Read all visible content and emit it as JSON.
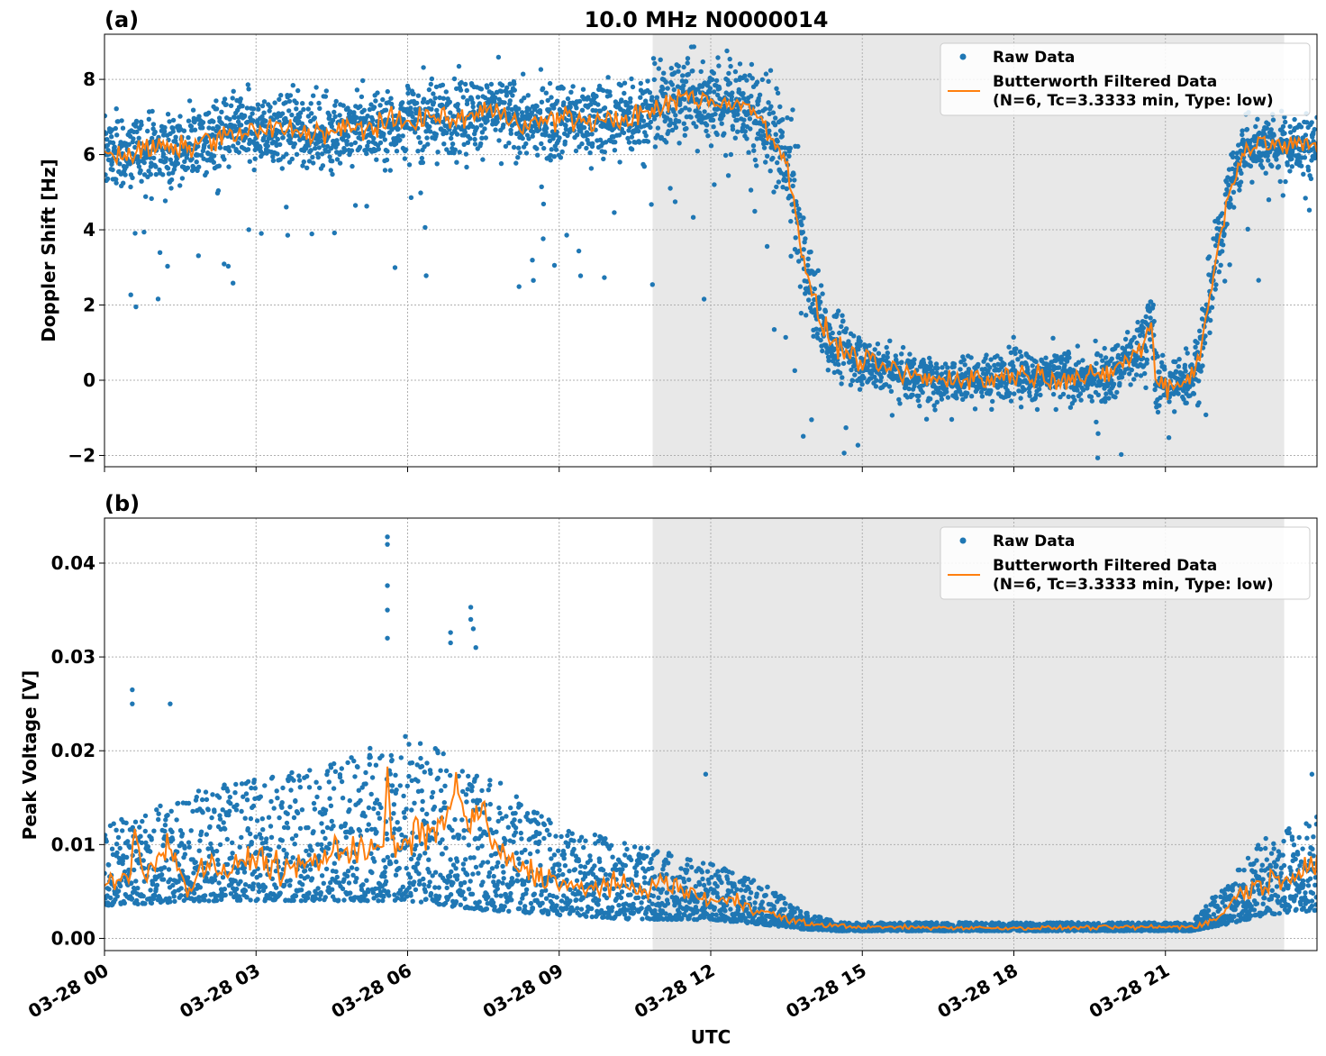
{
  "title": "10.0 MHz N0000014",
  "xlabel": "UTC",
  "colors": {
    "raw": "#1f77b4",
    "filtered": "#ff7f0e",
    "shade": "#e8e8e8",
    "grid": "#b0b0b0"
  },
  "chart_data": [
    {
      "type": "scatter",
      "panel_label": "(a)",
      "ylabel": "Doppler Shift [Hz]",
      "x_unit": "hours UTC on 03-28",
      "xlim": [
        0,
        24
      ],
      "ylim": [
        -2.3,
        9.2
      ],
      "x_ticks": [
        0,
        3,
        6,
        9,
        12,
        15,
        18,
        21
      ],
      "x_tick_labels": [
        "03-28 00",
        "03-28 03",
        "03-28 06",
        "03-28 09",
        "03-28 12",
        "03-28 15",
        "03-28 18",
        "03-28 21"
      ],
      "y_ticks": [
        -2,
        0,
        2,
        4,
        6,
        8
      ],
      "y_tick_labels": [
        "−2",
        "0",
        "2",
        "4",
        "6",
        "8"
      ],
      "shaded_x_range": [
        10.85,
        23.35
      ],
      "grid": true,
      "legend_position": "top-right",
      "legend": [
        {
          "label": "Raw Data",
          "kind": "marker"
        },
        {
          "label": "Butterworth Filtered Data",
          "label2": "(N=6, Tc=3.3333 min, Type: low)",
          "kind": "line"
        }
      ],
      "series": [
        {
          "name": "Butterworth Filtered Data",
          "points": [
            [
              0,
              6.1
            ],
            [
              0.5,
              6.0
            ],
            [
              1,
              6.2
            ],
            [
              1.5,
              6.1
            ],
            [
              2,
              6.4
            ],
            [
              2.5,
              6.5
            ],
            [
              3,
              6.6
            ],
            [
              3.5,
              6.7
            ],
            [
              4,
              6.6
            ],
            [
              4.5,
              6.6
            ],
            [
              5,
              6.7
            ],
            [
              5.5,
              6.8
            ],
            [
              6,
              6.9
            ],
            [
              6.5,
              7.0
            ],
            [
              7,
              6.9
            ],
            [
              7.5,
              7.2
            ],
            [
              8,
              7.0
            ],
            [
              8.5,
              6.8
            ],
            [
              9,
              7.0
            ],
            [
              9.5,
              6.9
            ],
            [
              10,
              6.9
            ],
            [
              10.5,
              7.0
            ],
            [
              11,
              7.2
            ],
            [
              11.5,
              7.6
            ],
            [
              12,
              7.4
            ],
            [
              12.5,
              7.4
            ],
            [
              13,
              7.0
            ],
            [
              13.3,
              6.3
            ],
            [
              13.6,
              5.3
            ],
            [
              13.8,
              3.5
            ],
            [
              14.0,
              2.2
            ],
            [
              14.3,
              1.2
            ],
            [
              14.6,
              0.8
            ],
            [
              15,
              0.5
            ],
            [
              15.5,
              0.3
            ],
            [
              16,
              0.1
            ],
            [
              16.5,
              0.0
            ],
            [
              17,
              0.1
            ],
            [
              17.5,
              0.0
            ],
            [
              18,
              0.2
            ],
            [
              18.5,
              0.1
            ],
            [
              19,
              0.1
            ],
            [
              19.5,
              0.0
            ],
            [
              20,
              0.3
            ],
            [
              20.5,
              0.8
            ],
            [
              20.75,
              1.5
            ],
            [
              20.8,
              0.0
            ],
            [
              21,
              -0.1
            ],
            [
              21.3,
              -0.1
            ],
            [
              21.6,
              0.3
            ],
            [
              21.8,
              1.5
            ],
            [
              22.0,
              3.2
            ],
            [
              22.3,
              5.3
            ],
            [
              22.6,
              6.2
            ],
            [
              23,
              6.3
            ],
            [
              23.5,
              6.2
            ],
            [
              24,
              6.3
            ]
          ]
        },
        {
          "name": "Raw Data",
          "spread_points": [
            [
              0,
              1.2
            ],
            [
              10.8,
              1.3
            ],
            [
              11.5,
              1.6
            ],
            [
              13,
              1.5
            ],
            [
              13.6,
              1.9
            ],
            [
              14.2,
              1.3
            ],
            [
              15,
              0.9
            ],
            [
              17,
              0.8
            ],
            [
              20,
              0.9
            ],
            [
              20.7,
              1.4
            ],
            [
              21,
              0.7
            ],
            [
              21.8,
              1.3
            ],
            [
              22.4,
              1.1
            ],
            [
              24,
              1.0
            ]
          ]
        }
      ]
    },
    {
      "type": "scatter",
      "panel_label": "(b)",
      "ylabel": "Peak Voltage [V]",
      "x_unit": "hours UTC on 03-28",
      "xlim": [
        0,
        24
      ],
      "ylim": [
        -0.0013,
        0.0448
      ],
      "x_ticks": [
        0,
        3,
        6,
        9,
        12,
        15,
        18,
        21
      ],
      "x_tick_labels": [
        "03-28 00",
        "03-28 03",
        "03-28 06",
        "03-28 09",
        "03-28 12",
        "03-28 15",
        "03-28 18",
        "03-28 21"
      ],
      "y_ticks": [
        0.0,
        0.01,
        0.02,
        0.03,
        0.04
      ],
      "y_tick_labels": [
        "0.00",
        "0.01",
        "0.02",
        "0.03",
        "0.04"
      ],
      "shaded_x_range": [
        10.85,
        23.35
      ],
      "grid": true,
      "legend_position": "top-right",
      "legend": [
        {
          "label": "Raw Data",
          "kind": "marker"
        },
        {
          "label": "Butterworth Filtered Data",
          "label2": "(N=6, Tc=3.3333 min, Type: low)",
          "kind": "line"
        }
      ],
      "series": [
        {
          "name": "Butterworth Filtered Data",
          "points": [
            [
              0,
              0.006
            ],
            [
              0.5,
              0.006
            ],
            [
              0.6,
              0.012
            ],
            [
              0.8,
              0.006
            ],
            [
              1,
              0.008
            ],
            [
              1.3,
              0.011
            ],
            [
              1.6,
              0.005
            ],
            [
              2,
              0.008
            ],
            [
              2.5,
              0.007
            ],
            [
              3,
              0.009
            ],
            [
              3.5,
              0.007
            ],
            [
              4,
              0.008
            ],
            [
              4.5,
              0.009
            ],
            [
              5,
              0.01
            ],
            [
              5.5,
              0.009
            ],
            [
              5.6,
              0.018
            ],
            [
              5.7,
              0.009
            ],
            [
              6,
              0.01
            ],
            [
              6.3,
              0.012
            ],
            [
              6.6,
              0.011
            ],
            [
              6.9,
              0.016
            ],
            [
              7.2,
              0.012
            ],
            [
              7.4,
              0.014
            ],
            [
              7.7,
              0.01
            ],
            [
              8,
              0.008
            ],
            [
              8.5,
              0.007
            ],
            [
              9,
              0.006
            ],
            [
              9.5,
              0.005
            ],
            [
              10,
              0.006
            ],
            [
              10.5,
              0.005
            ],
            [
              11,
              0.006
            ],
            [
              11.5,
              0.005
            ],
            [
              12,
              0.004
            ],
            [
              12.5,
              0.004
            ],
            [
              13,
              0.003
            ],
            [
              13.5,
              0.002
            ],
            [
              14,
              0.0015
            ],
            [
              15,
              0.0012
            ],
            [
              18,
              0.0011
            ],
            [
              21,
              0.0012
            ],
            [
              21.6,
              0.0013
            ],
            [
              22,
              0.002
            ],
            [
              22.5,
              0.005
            ],
            [
              23,
              0.006
            ],
            [
              23.5,
              0.007
            ],
            [
              24,
              0.008
            ]
          ]
        },
        {
          "name": "Raw Data",
          "band_points": [
            [
              0,
              0.0035,
              0.012
            ],
            [
              2,
              0.004,
              0.016
            ],
            [
              4,
              0.004,
              0.018
            ],
            [
              6,
              0.004,
              0.022
            ],
            [
              7.5,
              0.003,
              0.018
            ],
            [
              9,
              0.0025,
              0.012
            ],
            [
              10.5,
              0.002,
              0.01
            ],
            [
              12,
              0.002,
              0.008
            ],
            [
              13,
              0.0015,
              0.006
            ],
            [
              13.8,
              0.001,
              0.003
            ],
            [
              14.5,
              0.0008,
              0.0017
            ],
            [
              21.5,
              0.0008,
              0.0017
            ],
            [
              22.2,
              0.0015,
              0.006
            ],
            [
              23,
              0.0025,
              0.011
            ],
            [
              24,
              0.003,
              0.013
            ]
          ],
          "outliers": [
            [
              0.55,
              0.0265
            ],
            [
              0.55,
              0.025
            ],
            [
              1.3,
              0.025
            ],
            [
              5.6,
              0.0428
            ],
            [
              5.6,
              0.042
            ],
            [
              5.6,
              0.0376
            ],
            [
              5.6,
              0.035
            ],
            [
              5.6,
              0.032
            ],
            [
              6.85,
              0.0326
            ],
            [
              6.85,
              0.0315
            ],
            [
              7.25,
              0.0353
            ],
            [
              7.25,
              0.034
            ],
            [
              7.3,
              0.033
            ],
            [
              7.35,
              0.031
            ],
            [
              11.9,
              0.0175
            ],
            [
              23.9,
              0.0175
            ]
          ]
        }
      ]
    }
  ]
}
